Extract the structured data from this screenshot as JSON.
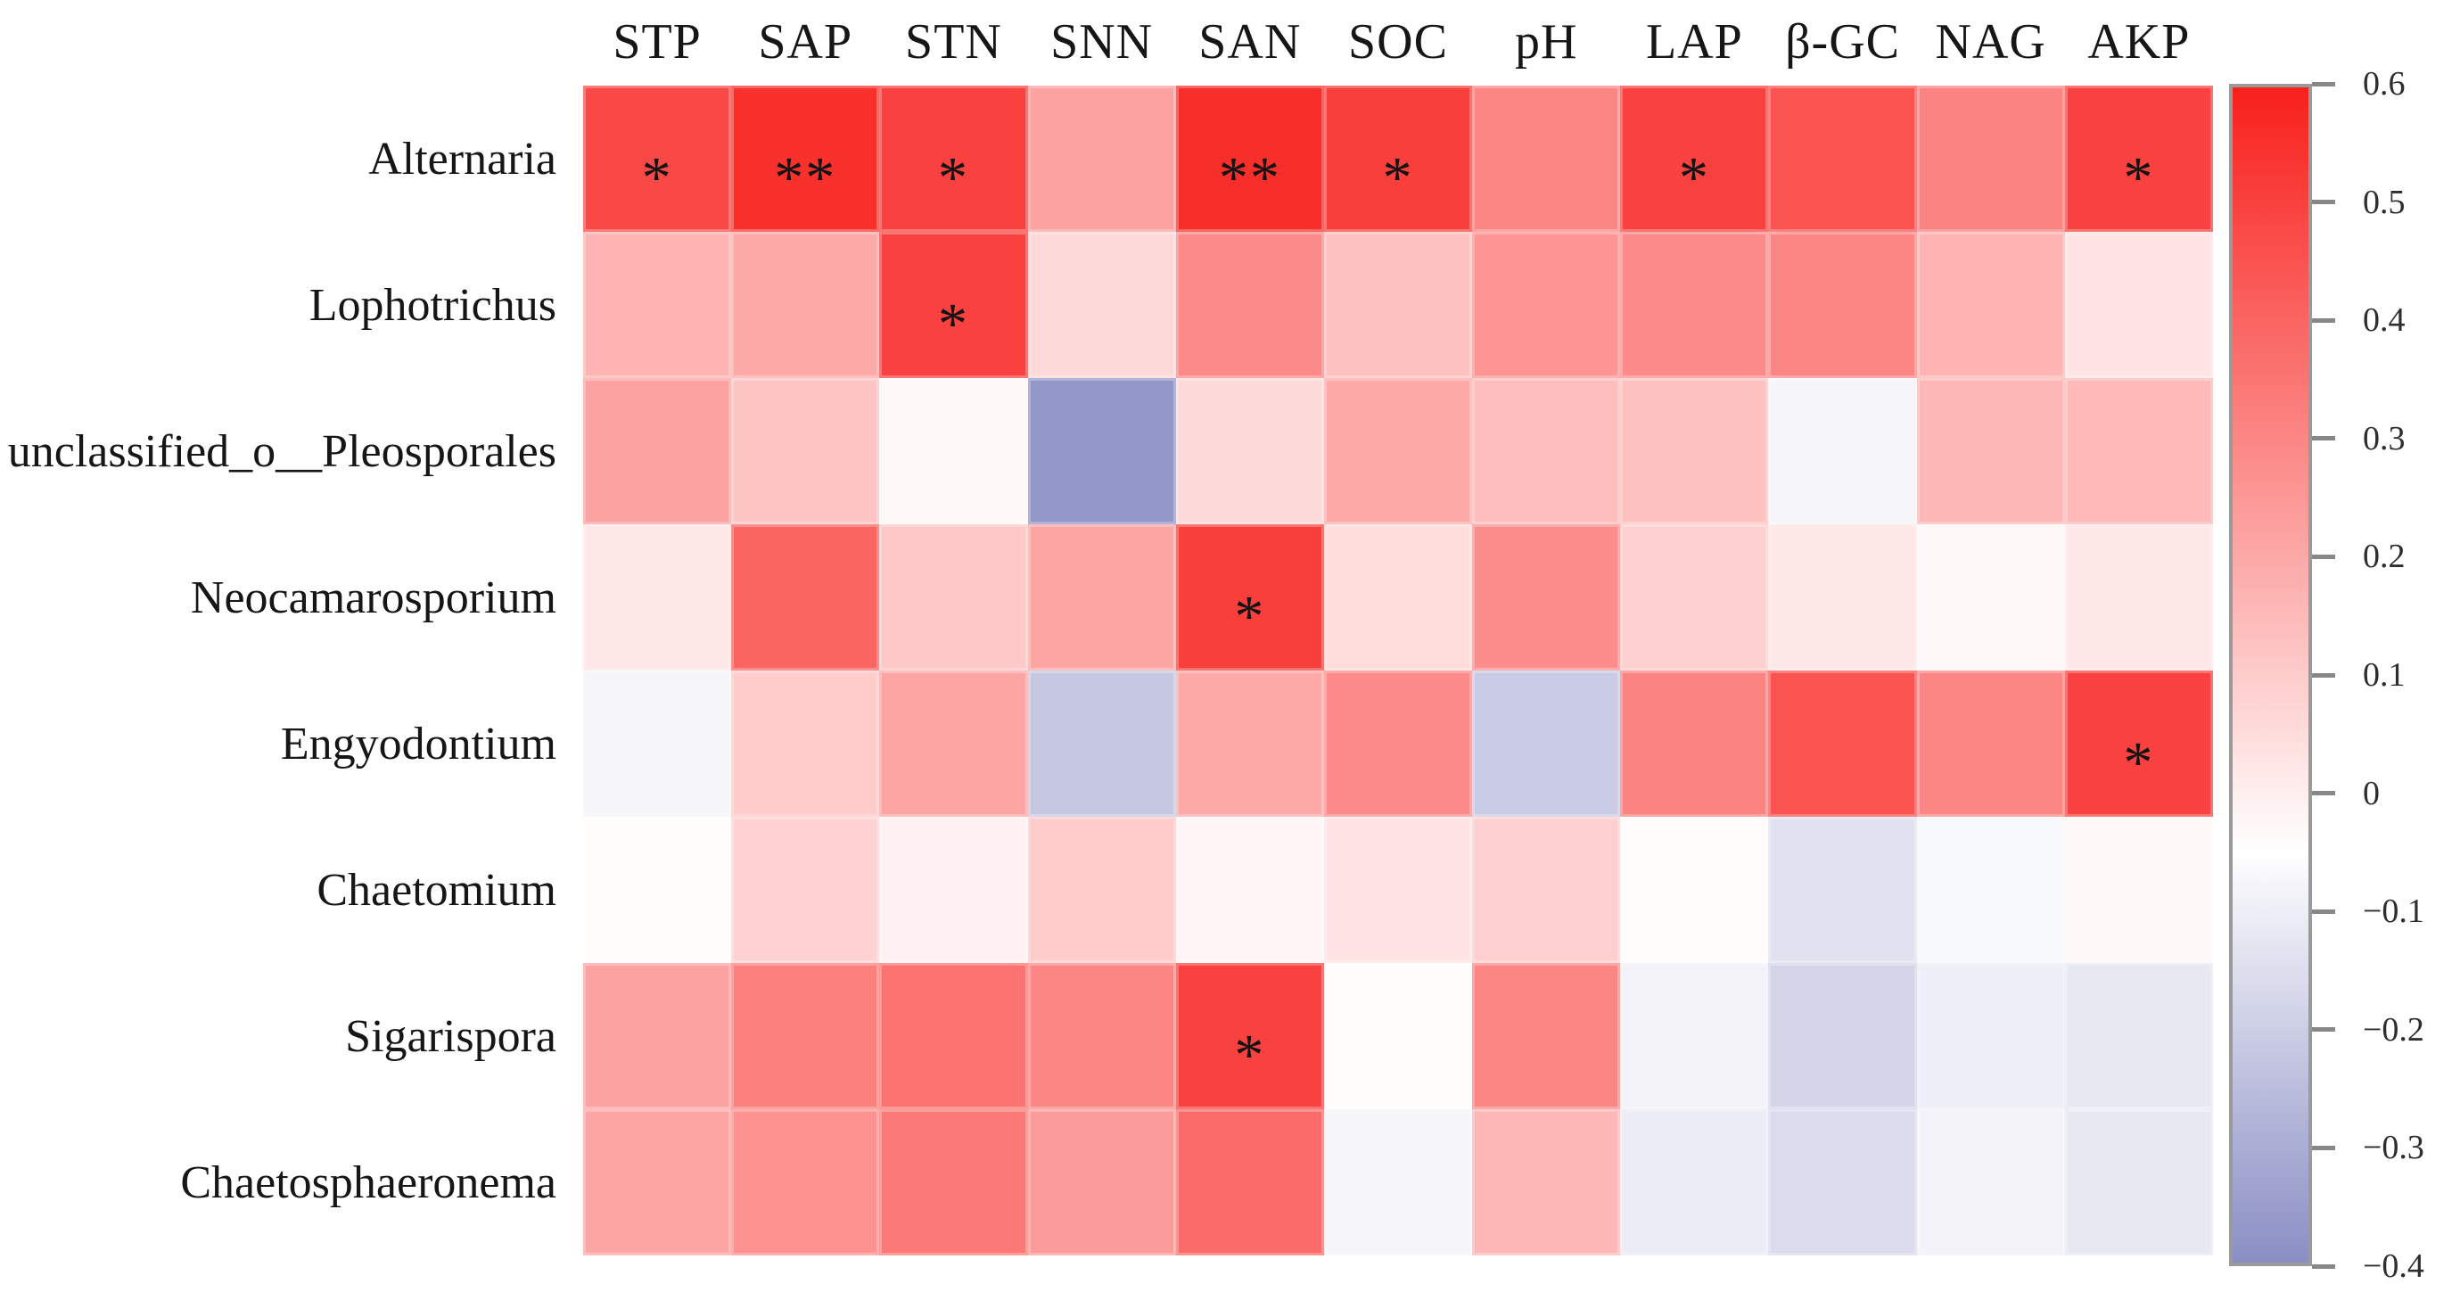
{
  "chart_data": {
    "type": "heatmap",
    "columns": [
      "STP",
      "SAP",
      "STN",
      "SNN",
      "SAN",
      "SOC",
      "pH",
      "LAP",
      "β-GC",
      "NAG",
      "AKP"
    ],
    "rows": [
      "Alternaria",
      "Lophotrichus",
      "unclassified_o__Pleosporales",
      "Neocamarosporium",
      "Engyodontium",
      "Chaetomium",
      "Sigarispora",
      "Chaetosphaeronema"
    ],
    "values": [
      [
        0.48,
        0.55,
        0.5,
        0.22,
        0.56,
        0.51,
        0.3,
        0.5,
        0.45,
        0.31,
        0.5
      ],
      [
        0.17,
        0.2,
        0.5,
        0.06,
        0.29,
        0.13,
        0.26,
        0.29,
        0.3,
        0.17,
        0.03
      ],
      [
        0.22,
        0.12,
        -0.03,
        -0.37,
        0.06,
        0.2,
        0.14,
        0.13,
        -0.08,
        0.16,
        0.15
      ],
      [
        0.02,
        0.4,
        0.11,
        0.21,
        0.51,
        0.05,
        0.28,
        0.09,
        0.02,
        -0.03,
        0.02
      ],
      [
        -0.08,
        0.1,
        0.21,
        -0.22,
        0.2,
        0.29,
        -0.21,
        0.31,
        0.45,
        0.3,
        0.5
      ],
      [
        -0.04,
        0.08,
        -0.01,
        0.1,
        -0.02,
        0.03,
        0.09,
        -0.04,
        -0.14,
        -0.07,
        -0.03
      ],
      [
        0.22,
        0.32,
        0.36,
        0.3,
        0.5,
        -0.04,
        0.3,
        -0.09,
        -0.18,
        -0.1,
        -0.12
      ],
      [
        0.21,
        0.27,
        0.34,
        0.24,
        0.38,
        -0.08,
        0.16,
        -0.11,
        -0.16,
        -0.09,
        -0.12
      ]
    ],
    "significance": [
      [
        "*",
        "**",
        "*",
        "",
        "**",
        "*",
        "",
        "*",
        "",
        "",
        "*"
      ],
      [
        "",
        "",
        "*",
        "",
        "",
        "",
        "",
        "",
        "",
        "",
        ""
      ],
      [
        "",
        "",
        "",
        "",
        "",
        "",
        "",
        "",
        "",
        "",
        ""
      ],
      [
        "",
        "",
        "",
        "",
        "*",
        "",
        "",
        "",
        "",
        "",
        ""
      ],
      [
        "",
        "",
        "",
        "",
        "",
        "",
        "",
        "",
        "",
        "",
        "*"
      ],
      [
        "",
        "",
        "",
        "",
        "",
        "",
        "",
        "",
        "",
        "",
        ""
      ],
      [
        "",
        "",
        "",
        "",
        "*",
        "",
        "",
        "",
        "",
        "",
        ""
      ],
      [
        "",
        "",
        "",
        "",
        "",
        "",
        "",
        "",
        "",
        "",
        ""
      ]
    ],
    "colorbar": {
      "min": -0.4,
      "max": 0.6,
      "center_value": -0.05,
      "color_max": "#f8201c",
      "color_center": "#ffffff",
      "color_min": "#8a8ec4",
      "ticks": [
        0.6,
        0.5,
        0.4,
        0.3,
        0.2,
        0.1,
        0,
        -0.1,
        -0.2,
        -0.3,
        -0.4
      ],
      "tick_labels": [
        "0.6",
        "0.5",
        "0.4",
        "0.3",
        "0.2",
        "0.1",
        "0",
        "−0.1",
        "−0.2",
        "−0.3",
        "−0.4"
      ]
    },
    "legend_position": "right",
    "grid": false
  }
}
